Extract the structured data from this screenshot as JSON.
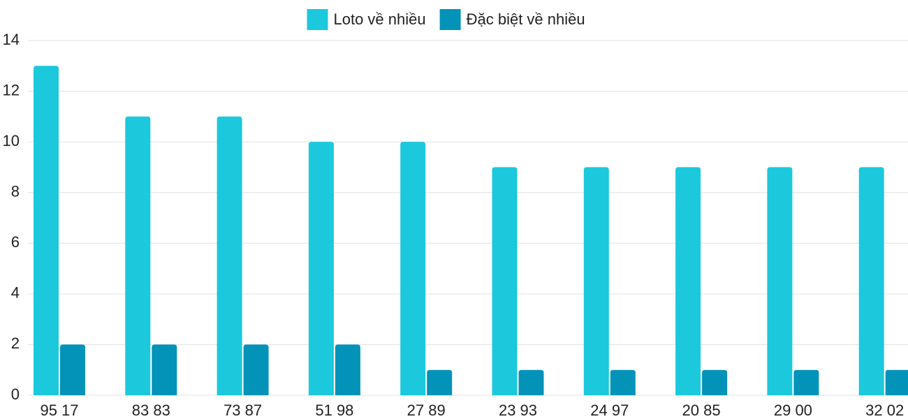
{
  "chart_data": {
    "type": "bar",
    "categories": [
      "95 17",
      "83 83",
      "73 87",
      "51 98",
      "27 89",
      "23 93",
      "24 97",
      "20 85",
      "29 00",
      "32 02"
    ],
    "series": [
      {
        "name": "Loto về nhiều",
        "color": "#1bc8dc",
        "values": [
          13,
          11,
          11,
          10,
          10,
          9,
          9,
          9,
          9,
          9
        ]
      },
      {
        "name": "Đặc biệt về nhiều",
        "color": "#0393b9",
        "values": [
          2,
          2,
          2,
          2,
          1,
          1,
          1,
          1,
          1,
          1
        ]
      }
    ],
    "ylim": [
      0,
      14
    ],
    "yticks": [
      0,
      2,
      4,
      6,
      8,
      10,
      12,
      14
    ],
    "grid": true,
    "legend": "top"
  }
}
